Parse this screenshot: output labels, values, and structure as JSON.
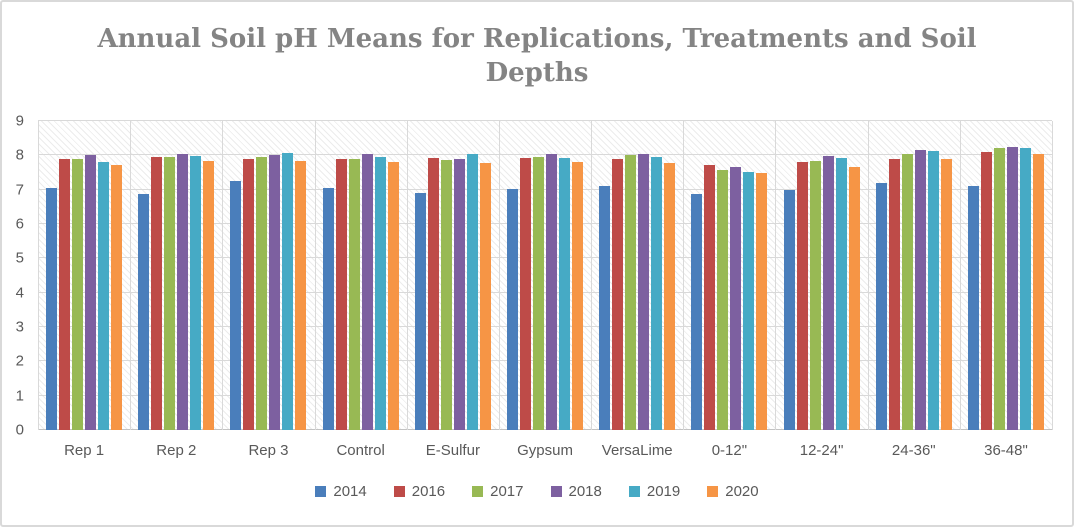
{
  "chart_data": {
    "type": "bar",
    "title": "Annual Soil pH Means for Replications, Treatments and Soil Depths",
    "xlabel": "",
    "ylabel": "",
    "ylim": [
      0,
      9
    ],
    "yticks": [
      0,
      1,
      2,
      3,
      4,
      5,
      6,
      7,
      8,
      9
    ],
    "grid": true,
    "plot_pattern": "diagonal-hatch",
    "legend_position": "bottom",
    "categories": [
      "Rep 1",
      "Rep 2",
      "Rep 3",
      "Control",
      "E-Sulfur",
      "Gypsum",
      "VersaLime",
      "0-12\"",
      "12-24\"",
      "24-36\"",
      "36-48\""
    ],
    "series": [
      {
        "name": "2014",
        "color": "#4a7ebb",
        "values": [
          7.04,
          6.86,
          7.24,
          7.06,
          6.91,
          7.03,
          7.12,
          6.87,
          7.0,
          7.19,
          7.1
        ]
      },
      {
        "name": "2016",
        "color": "#be4b48",
        "values": [
          7.89,
          7.94,
          7.9,
          7.89,
          7.93,
          7.91,
          7.89,
          7.73,
          7.82,
          7.9,
          8.09
        ]
      },
      {
        "name": "2017",
        "color": "#98b954",
        "values": [
          7.9,
          7.94,
          7.94,
          7.89,
          7.87,
          7.94,
          8.0,
          7.58,
          7.84,
          8.05,
          8.2
        ]
      },
      {
        "name": "2018",
        "color": "#7d60a0",
        "values": [
          8.02,
          8.05,
          8.0,
          8.05,
          7.9,
          8.05,
          8.03,
          7.67,
          7.99,
          8.16,
          8.23
        ]
      },
      {
        "name": "2019",
        "color": "#46aac5",
        "values": [
          7.82,
          7.97,
          8.08,
          7.95,
          8.04,
          7.92,
          7.95,
          7.51,
          7.92,
          8.12,
          8.22
        ]
      },
      {
        "name": "2020",
        "color": "#f69545",
        "values": [
          7.71,
          7.83,
          7.83,
          7.8,
          7.78,
          7.82,
          7.77,
          7.49,
          7.67,
          7.89,
          8.04
        ]
      }
    ]
  },
  "style": {
    "title_color": "#848484",
    "label_color": "#595959",
    "gridline_color": "#d9d9d9",
    "axis_color": "#c3c3c3",
    "border_color": "#d9d9d9"
  }
}
